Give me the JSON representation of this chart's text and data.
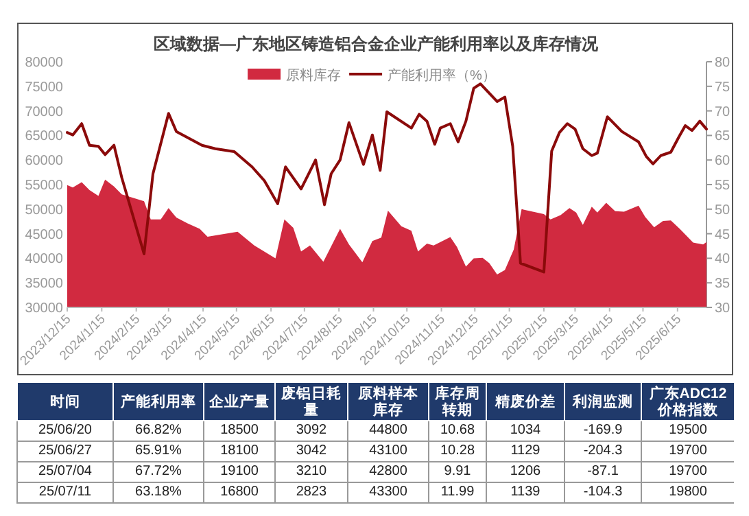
{
  "chart_data": [
    {
      "type": "area",
      "title": "区域数据—广东地区铸造铝合金企业产能利用率以及库存情况",
      "legend": "top",
      "xlim": [
        "2023-12-15",
        "2025-07-11"
      ],
      "xticks": [
        {
          "value": "2023-12-15",
          "label": "2023/12/15"
        },
        {
          "value": "2024-01-15",
          "label": "2024/1/15"
        },
        {
          "value": "2024-02-15",
          "label": "2024/2/15"
        },
        {
          "value": "2024-03-15",
          "label": "2024/3/15"
        },
        {
          "value": "2024-04-15",
          "label": "2024/4/15"
        },
        {
          "value": "2024-05-15",
          "label": "2024/5/15"
        },
        {
          "value": "2024-06-15",
          "label": "2024/6/15"
        },
        {
          "value": "2024-07-15",
          "label": "2024/7/15"
        },
        {
          "value": "2024-08-15",
          "label": "2024/8/15"
        },
        {
          "value": "2024-09-15",
          "label": "2024/9/15"
        },
        {
          "value": "2024-10-15",
          "label": "2024/10/15"
        },
        {
          "value": "2024-11-15",
          "label": "2024/11/15"
        },
        {
          "value": "2024-12-15",
          "label": "2024/12/15"
        },
        {
          "value": "2025-01-15",
          "label": "2025/1/15"
        },
        {
          "value": "2025-02-15",
          "label": "2025/2/15"
        },
        {
          "value": "2025-03-15",
          "label": "2025/3/15"
        },
        {
          "value": "2025-04-15",
          "label": "2025/4/15"
        },
        {
          "value": "2025-05-15",
          "label": "2025/5/15"
        },
        {
          "value": "2025-06-15",
          "label": "2025/6/15"
        }
      ],
      "ylim": [
        30000,
        80000
      ],
      "yticks": [
        30000,
        35000,
        40000,
        45000,
        50000,
        55000,
        60000,
        65000,
        70000,
        75000,
        80000
      ],
      "y2lim": [
        30,
        80
      ],
      "y2ticks": [
        30,
        35,
        40,
        45,
        50,
        55,
        60,
        65,
        70,
        75,
        80
      ],
      "series": [
        {
          "name": "原料库存",
          "type": "area",
          "color": "#d12a40",
          "x": [
            "2023-12-15",
            "2023-12-20",
            "2023-12-28",
            "2024-01-04",
            "2024-01-12",
            "2024-01-18",
            "2024-01-26",
            "2024-02-02",
            "2024-02-12",
            "2024-02-22",
            "2024-02-28",
            "2024-03-08",
            "2024-03-15",
            "2024-03-22",
            "2024-04-01",
            "2024-04-12",
            "2024-04-19",
            "2024-04-30",
            "2024-05-16",
            "2024-05-31",
            "2024-06-19",
            "2024-06-27",
            "2024-07-05",
            "2024-07-12",
            "2024-07-20",
            "2024-08-01",
            "2024-08-16",
            "2024-08-24",
            "2024-09-05",
            "2024-09-14",
            "2024-09-22",
            "2024-09-28",
            "2024-10-10",
            "2024-10-19",
            "2024-10-25",
            "2024-11-02",
            "2024-11-08",
            "2024-11-23",
            "2024-11-29",
            "2024-12-07",
            "2024-12-14",
            "2024-12-22",
            "2024-12-28",
            "2025-01-04",
            "2025-01-11",
            "2025-01-19",
            "2025-01-26",
            "2025-02-15",
            "2025-02-21",
            "2025-03-02",
            "2025-03-10",
            "2025-03-16",
            "2025-03-22",
            "2025-03-30",
            "2025-04-04",
            "2025-04-12",
            "2025-04-20",
            "2025-04-28",
            "2025-05-11",
            "2025-05-17",
            "2025-05-25",
            "2025-06-02",
            "2025-06-09",
            "2025-06-17",
            "2025-06-29",
            "2025-07-08",
            "2025-07-11"
          ],
          "values": [
            54900,
            54400,
            55500,
            53900,
            52700,
            56000,
            54600,
            53000,
            52300,
            51600,
            47900,
            47900,
            50200,
            48300,
            47100,
            46000,
            44400,
            44800,
            45400,
            42600,
            40000,
            47900,
            46200,
            41400,
            42600,
            39300,
            46000,
            42800,
            39200,
            43500,
            44200,
            49700,
            46500,
            45600,
            41400,
            43000,
            42600,
            44300,
            42300,
            38300,
            40000,
            40100,
            39000,
            36700,
            37600,
            41800,
            50000,
            49000,
            47900,
            48800,
            50200,
            49300,
            46800,
            50500,
            49300,
            51300,
            49600,
            49500,
            50700,
            48400,
            46300,
            47600,
            47700,
            46000,
            43200,
            42800,
            43300
          ]
        },
        {
          "name": "产能利用率（%）",
          "type": "line",
          "axis": "y2",
          "color": "#8b0a0a",
          "x": [
            "2023-12-15",
            "2023-12-20",
            "2023-12-28",
            "2024-01-04",
            "2024-01-12",
            "2024-01-18",
            "2024-01-26",
            "2024-02-02",
            "2024-02-22",
            "2024-03-01",
            "2024-03-15",
            "2024-03-22",
            "2024-04-14",
            "2024-04-26",
            "2024-05-13",
            "2024-05-29",
            "2024-06-09",
            "2024-06-21",
            "2024-06-28",
            "2024-07-12",
            "2024-07-25",
            "2024-08-02",
            "2024-08-08",
            "2024-08-16",
            "2024-08-24",
            "2024-09-06",
            "2024-09-14",
            "2024-09-21",
            "2024-09-27",
            "2024-10-19",
            "2024-10-26",
            "2024-11-02",
            "2024-11-09",
            "2024-11-14",
            "2024-11-23",
            "2024-11-30",
            "2024-12-07",
            "2024-12-14",
            "2024-12-20",
            "2025-01-04",
            "2025-01-11",
            "2025-01-18",
            "2025-01-25",
            "2025-02-15",
            "2025-02-22",
            "2025-03-01",
            "2025-03-08",
            "2025-03-15",
            "2025-03-22",
            "2025-03-30",
            "2025-04-04",
            "2025-04-13",
            "2025-04-26",
            "2025-05-11",
            "2025-05-18",
            "2025-05-24",
            "2025-05-31",
            "2025-06-09",
            "2025-06-16",
            "2025-06-22",
            "2025-06-28",
            "2025-07-05",
            "2025-07-11"
          ],
          "values": [
            65.6,
            65.1,
            67.4,
            63.0,
            62.8,
            61.1,
            63.0,
            56.4,
            40.9,
            57.2,
            69.5,
            65.8,
            63.0,
            62.3,
            61.7,
            58.6,
            55.8,
            51.1,
            58.6,
            54.1,
            60.0,
            50.9,
            57.2,
            60.0,
            67.6,
            59.1,
            65.1,
            57.9,
            69.8,
            66.5,
            69.3,
            67.9,
            63.2,
            66.5,
            67.4,
            63.7,
            67.9,
            74.6,
            75.5,
            71.9,
            72.8,
            62.8,
            39.0,
            37.2,
            61.8,
            65.6,
            67.4,
            66.3,
            62.3,
            60.9,
            61.4,
            68.8,
            65.8,
            63.7,
            60.7,
            59.2,
            60.9,
            61.6,
            64.6,
            67.0,
            66.0,
            67.9,
            66.3
          ]
        }
      ]
    },
    {
      "type": "other",
      "categories": [
        "时间",
        "产能利用率",
        "企业产量",
        "废铝日耗量",
        "原料样本库存",
        "库存周转期",
        "精废价差",
        "利润监测",
        "广东ADC12价格指数"
      ],
      "annotations": [
        "25/06/20",
        "66.82%",
        "18500",
        "3092",
        "44800",
        "10.68",
        "1034",
        "-169.9",
        "19500",
        "25/06/27",
        "65.91%",
        "18100",
        "3042",
        "43100",
        "10.28",
        "1129",
        "-204.3",
        "19700",
        "25/07/04",
        "67.72%",
        "19100",
        "3210",
        "42800",
        "9.91",
        "1206",
        "-87.1",
        "19700",
        "25/07/11",
        "63.18%",
        "16800",
        "2823",
        "43300",
        "11.99",
        "1139",
        "-104.3",
        "19800"
      ]
    }
  ]
}
